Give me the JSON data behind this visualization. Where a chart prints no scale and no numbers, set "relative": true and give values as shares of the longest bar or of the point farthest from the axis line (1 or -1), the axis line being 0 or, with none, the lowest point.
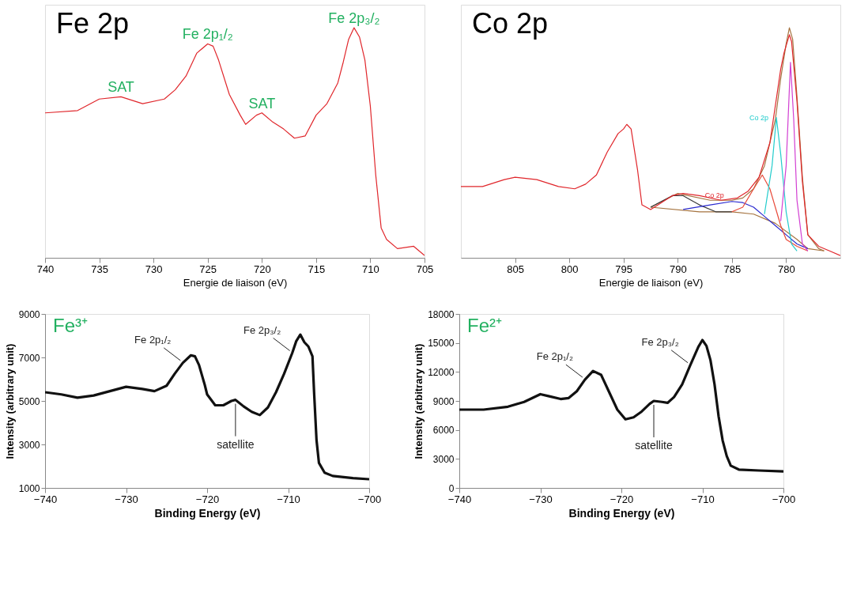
{
  "chart_data": [
    {
      "type": "line",
      "title": "Fe 2p",
      "xlabel": "Energie de liaison (eV)",
      "relative": true,
      "xlim": [
        740,
        705
      ],
      "xticks": [
        740,
        735,
        730,
        725,
        720,
        715,
        710,
        705
      ],
      "x": [
        740,
        737,
        735,
        733,
        731,
        729,
        728,
        727,
        726,
        725,
        724.5,
        724,
        723,
        722,
        721.5,
        720.5,
        720,
        719,
        718,
        717,
        716,
        715,
        714,
        713,
        712.5,
        712,
        711.5,
        711,
        710.5,
        710,
        709.5,
        709,
        708.5,
        707.5,
        706,
        705
      ],
      "series": [
        {
          "color": "#e0262b",
          "values": [
            0.63,
            0.64,
            0.69,
            0.7,
            0.67,
            0.69,
            0.73,
            0.79,
            0.89,
            0.93,
            0.92,
            0.86,
            0.71,
            0.62,
            0.58,
            0.62,
            0.63,
            0.59,
            0.56,
            0.52,
            0.53,
            0.62,
            0.67,
            0.76,
            0.85,
            0.95,
            1.0,
            0.96,
            0.86,
            0.66,
            0.36,
            0.13,
            0.08,
            0.04,
            0.05,
            0.01
          ]
        }
      ],
      "annotations": [
        {
          "text": "SAT",
          "x": 733,
          "y": 0.7
        },
        {
          "text": "Fe 2p₁/₂",
          "x": 725,
          "y": 0.93
        },
        {
          "text": "SAT",
          "x": 720,
          "y": 0.63
        },
        {
          "text": "Fe 2p₃/₂",
          "x": 711.5,
          "y": 1.0
        }
      ]
    },
    {
      "type": "line",
      "title": "Co 2p",
      "xlabel": "Energie de liaison (eV)",
      "relative": true,
      "xlim": [
        810,
        775
      ],
      "xticks": [
        805,
        800,
        795,
        790,
        785,
        780
      ],
      "series": [
        {
          "color": "#a5733f",
          "x": [
            792.5,
            790,
            787,
            785,
            784,
            783,
            782,
            781,
            780.5,
            780,
            779.7,
            779.4,
            779,
            778.5,
            778,
            777,
            776.5
          ],
          "values": [
            0.22,
            0.28,
            0.25,
            0.25,
            0.26,
            0.3,
            0.4,
            0.6,
            0.78,
            0.93,
            1.0,
            0.95,
            0.7,
            0.35,
            0.1,
            0.04,
            0.03
          ]
        },
        {
          "color": "#a5733f",
          "x": [
            792.5,
            788,
            785,
            783,
            781,
            779,
            778,
            776.5
          ],
          "values": [
            0.22,
            0.2,
            0.2,
            0.19,
            0.15,
            0.08,
            0.04,
            0.03
          ]
        },
        {
          "color": "#3a3a3a",
          "x": [
            792.5,
            790.5,
            789.5,
            788,
            786.5,
            785
          ],
          "values": [
            0.22,
            0.27,
            0.27,
            0.23,
            0.2,
            0.2
          ]
        },
        {
          "color": "#2a2ad0",
          "x": [
            789.5,
            787,
            785,
            784,
            783,
            782,
            781,
            780,
            779,
            778
          ],
          "values": [
            0.21,
            0.23,
            0.245,
            0.24,
            0.22,
            0.18,
            0.14,
            0.1,
            0.06,
            0.04
          ]
        },
        {
          "color": "#e84a3a",
          "x": [
            785,
            784,
            783,
            782.2,
            781.5,
            781,
            780.5,
            780,
            779,
            778
          ],
          "values": [
            0.2,
            0.22,
            0.3,
            0.36,
            0.3,
            0.22,
            0.14,
            0.08,
            0.05,
            0.03
          ]
        },
        {
          "color": "#22cccc",
          "x": [
            782,
            781.3,
            780.9,
            780.5,
            780,
            779.5,
            779
          ],
          "values": [
            0.19,
            0.4,
            0.61,
            0.45,
            0.2,
            0.06,
            0.03
          ]
        },
        {
          "color": "#d23fd2",
          "x": [
            780.5,
            780,
            779.6,
            779.3,
            779,
            778.5,
            778
          ],
          "values": [
            0.16,
            0.4,
            0.85,
            0.6,
            0.25,
            0.06,
            0.03
          ]
        },
        {
          "color": "#e0262b",
          "x": [
            810,
            808,
            806,
            805,
            803,
            801,
            799.5,
            798.5,
            797.5,
            796.5,
            795.5,
            795,
            794.7,
            794.3,
            793.7,
            793.3,
            792.5,
            791.5,
            790.5,
            789.5,
            788,
            786,
            784.5,
            783.5,
            782.5,
            781.5,
            781,
            780.5,
            780.2,
            779.7,
            779.5,
            779,
            778.5,
            778,
            777,
            776,
            775
          ],
          "values": [
            0.31,
            0.31,
            0.34,
            0.35,
            0.34,
            0.31,
            0.3,
            0.32,
            0.36,
            0.46,
            0.54,
            0.56,
            0.58,
            0.56,
            0.38,
            0.23,
            0.21,
            0.24,
            0.27,
            0.28,
            0.27,
            0.25,
            0.26,
            0.29,
            0.35,
            0.5,
            0.66,
            0.82,
            0.89,
            0.97,
            0.94,
            0.68,
            0.33,
            0.1,
            0.05,
            0.03,
            0.01
          ]
        }
      ],
      "annotations": [
        {
          "text": "Co 2p",
          "x": 785,
          "y": 0.27
        },
        {
          "text": "Co 2p",
          "x": 780.9,
          "y": 0.61
        }
      ]
    },
    {
      "type": "line",
      "title": "Fe³⁺",
      "xlabel": "Binding Energy (eV)",
      "ylabel": "Intensity (arbitrary unit)",
      "xlim": [
        -740,
        -700
      ],
      "xticks": [
        -740,
        -730,
        -720,
        -710,
        -700
      ],
      "ylim": [
        1000,
        9000
      ],
      "yticks": [
        1000,
        3000,
        5000,
        7000,
        9000
      ],
      "x": [
        -740,
        -738,
        -736,
        -734,
        -732,
        -730,
        -728,
        -726.5,
        -725,
        -724,
        -723,
        -722,
        -721.5,
        -721,
        -720.3,
        -720,
        -719,
        -718,
        -717,
        -716.5,
        -715.5,
        -714.5,
        -713.5,
        -712.5,
        -711.5,
        -710.5,
        -709.5,
        -709,
        -708.5,
        -708,
        -707.5,
        -707,
        -706.8,
        -706.5,
        -706.2,
        -705.5,
        -704.5,
        -702,
        -700
      ],
      "series": [
        {
          "color": "#111111",
          "values": [
            5400,
            5300,
            5150,
            5250,
            5450,
            5650,
            5550,
            5450,
            5700,
            6250,
            6750,
            7100,
            7050,
            6650,
            5750,
            5300,
            4800,
            4800,
            5000,
            5050,
            4750,
            4500,
            4350,
            4700,
            5400,
            6250,
            7200,
            7750,
            8050,
            7700,
            7500,
            7050,
            5400,
            3200,
            2150,
            1700,
            1550,
            1450,
            1400
          ]
        }
      ],
      "annotations": [
        {
          "text": "Fe 2p₁/₂",
          "x": -723,
          "y": 6750
        },
        {
          "text": "satellite",
          "x": -716.5,
          "y": 5050
        },
        {
          "text": "Fe 2p₃/₂",
          "x": -709.5,
          "y": 7200
        }
      ]
    },
    {
      "type": "line",
      "title": "Fe²⁺",
      "xlabel": "Binding Energy (eV)",
      "ylabel": "Intensity (arbitrary unit)",
      "xlim": [
        -740,
        -700
      ],
      "xticks": [
        -740,
        -730,
        -720,
        -710,
        -700
      ],
      "ylim": [
        0,
        18000
      ],
      "yticks": [
        0,
        3000,
        6000,
        9000,
        12000,
        15000,
        18000
      ],
      "x": [
        -740,
        -737,
        -734,
        -732,
        -730,
        -729,
        -727.5,
        -726.5,
        -725.5,
        -724.5,
        -723.5,
        -722.5,
        -721.5,
        -720.5,
        -719.5,
        -718.5,
        -717.5,
        -716.5,
        -716,
        -715,
        -714.3,
        -713.5,
        -712.5,
        -711.5,
        -710.5,
        -710,
        -709.5,
        -709,
        -708.5,
        -708,
        -707.5,
        -707,
        -706.5,
        -705.5,
        -703,
        -700
      ],
      "series": [
        {
          "color": "#111111",
          "values": [
            8100,
            8100,
            8400,
            8900,
            9700,
            9500,
            9200,
            9300,
            10000,
            11200,
            12100,
            11700,
            9900,
            8100,
            7100,
            7300,
            7900,
            8700,
            9000,
            8900,
            8800,
            9400,
            10700,
            12700,
            14600,
            15300,
            14700,
            13200,
            10700,
            7400,
            4900,
            3300,
            2300,
            1900,
            1800,
            1700
          ]
        }
      ],
      "annotations": [
        {
          "text": "Fe 2p₁/₂",
          "x": -724.5,
          "y": 11200
        },
        {
          "text": "satellite",
          "x": -716,
          "y": 9000
        },
        {
          "text": "Fe 2p₃/₂",
          "x": -711.5,
          "y": 12700
        }
      ]
    }
  ]
}
